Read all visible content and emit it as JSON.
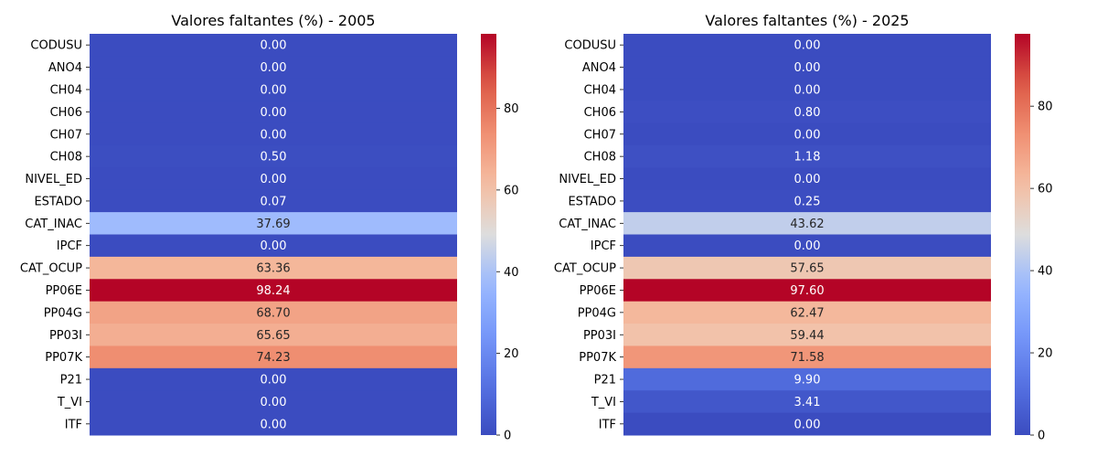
{
  "chart_data": [
    {
      "type": "heatmap",
      "title": "Valores faltantes (%) - 2005",
      "colormap": "coolwarm",
      "categories": [
        "CODUSU",
        "ANO4",
        "CH04",
        "CH06",
        "CH07",
        "CH08",
        "NIVEL_ED",
        "ESTADO",
        "CAT_INAC",
        "IPCF",
        "CAT_OCUP",
        "PP06E",
        "PP04G",
        "PP03I",
        "PP07K",
        "P21",
        "T_VI",
        "ITF"
      ],
      "values": [
        0.0,
        0.0,
        0.0,
        0.0,
        0.0,
        0.5,
        0.0,
        0.07,
        37.69,
        0.0,
        63.36,
        98.24,
        68.7,
        65.65,
        74.23,
        0.0,
        0.0,
        0.0
      ],
      "labels": [
        "0.00",
        "0.00",
        "0.00",
        "0.00",
        "0.00",
        "0.50",
        "0.00",
        "0.07",
        "37.69",
        "0.00",
        "63.36",
        "98.24",
        "68.70",
        "65.65",
        "74.23",
        "0.00",
        "0.00",
        "0.00"
      ],
      "colorbar": {
        "min": 0,
        "max": 98.24,
        "ticks": [
          0,
          20,
          40,
          60,
          80
        ],
        "tick_labels": [
          "0",
          "20",
          "40",
          "60",
          "80"
        ]
      }
    },
    {
      "type": "heatmap",
      "title": "Valores faltantes (%) - 2025",
      "colormap": "coolwarm",
      "categories": [
        "CODUSU",
        "ANO4",
        "CH04",
        "CH06",
        "CH07",
        "CH08",
        "NIVEL_ED",
        "ESTADO",
        "CAT_INAC",
        "IPCF",
        "CAT_OCUP",
        "PP06E",
        "PP04G",
        "PP03I",
        "PP07K",
        "P21",
        "T_VI",
        "ITF"
      ],
      "values": [
        0.0,
        0.0,
        0.0,
        0.8,
        0.0,
        1.18,
        0.0,
        0.25,
        43.62,
        0.0,
        57.65,
        97.6,
        62.47,
        59.44,
        71.58,
        9.9,
        3.41,
        0.0
      ],
      "labels": [
        "0.00",
        "0.00",
        "0.00",
        "0.80",
        "0.00",
        "1.18",
        "0.00",
        "0.25",
        "43.62",
        "0.00",
        "57.65",
        "97.60",
        "62.47",
        "59.44",
        "71.58",
        "9.90",
        "3.41",
        "0.00"
      ],
      "colorbar": {
        "min": 0,
        "max": 97.6,
        "ticks": [
          0,
          20,
          40,
          60,
          80
        ],
        "tick_labels": [
          "0",
          "20",
          "40",
          "60",
          "80"
        ]
      }
    }
  ]
}
